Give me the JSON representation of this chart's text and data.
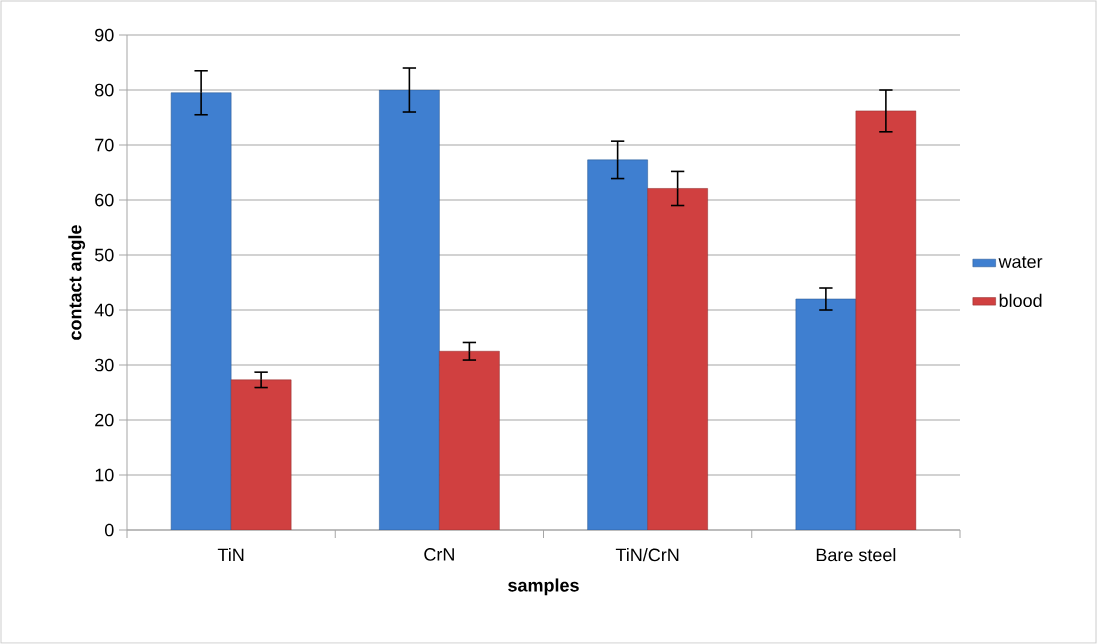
{
  "chart_data": {
    "type": "bar",
    "xlabel": "samples",
    "ylabel": "contact angle",
    "categories": [
      "TiN",
      "CrN",
      "TiN/CrN",
      "Bare steel"
    ],
    "series": [
      {
        "name": "water",
        "color": "#3f7fd0",
        "values": [
          79.5,
          80,
          67.3,
          42
        ],
        "errors": [
          4,
          4,
          3.4,
          2
        ]
      },
      {
        "name": "blood",
        "color": "#d04040",
        "values": [
          27.3,
          32.5,
          62.1,
          76.2
        ],
        "errors": [
          1.4,
          1.6,
          3.1,
          3.8
        ]
      }
    ],
    "ylim": [
      0,
      90
    ],
    "yticks": [
      0,
      10,
      20,
      30,
      40,
      50,
      60,
      70,
      80,
      90
    ],
    "grid": "y",
    "legend": "right"
  }
}
